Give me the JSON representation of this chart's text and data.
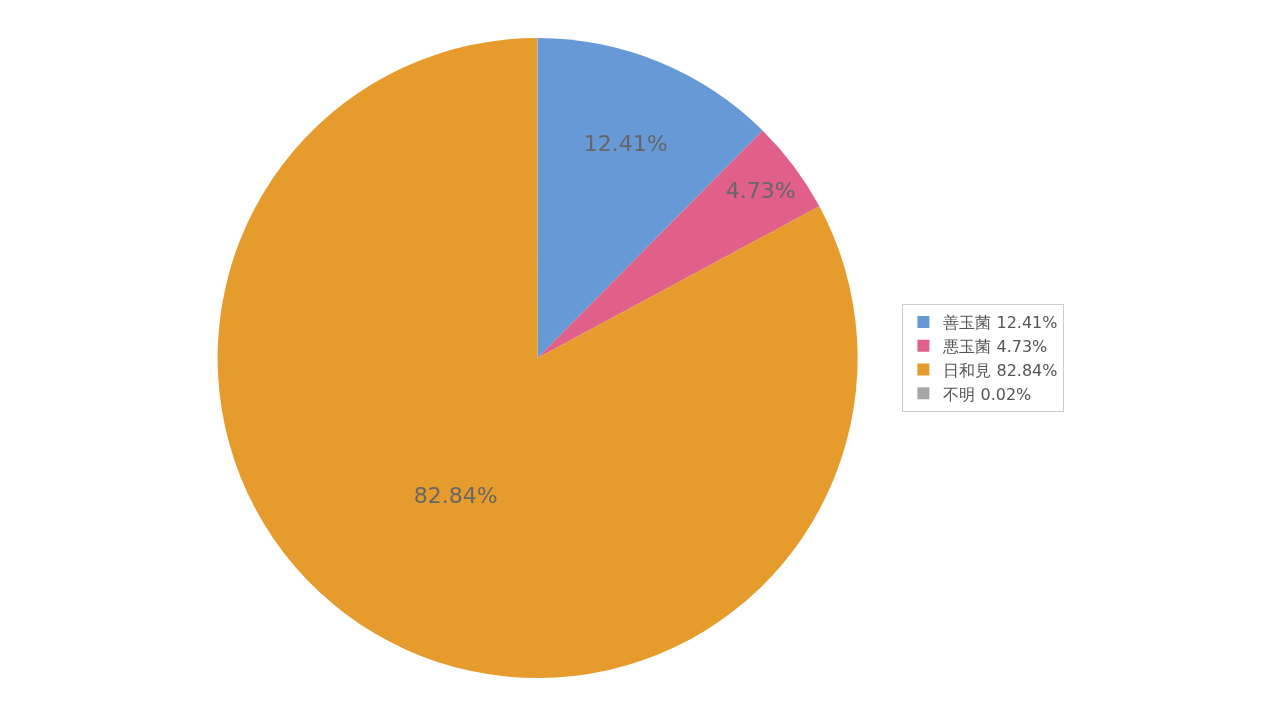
{
  "chart_data": {
    "type": "pie",
    "categories": [
      "善玉菌 12.41%",
      "悪玉菌 4.73%",
      "日和見 82.84%",
      "不明 0.02%"
    ],
    "values": [
      12.41,
      4.73,
      82.84,
      0.02
    ],
    "colors": [
      "#6699d5",
      "#e0608a",
      "#e69c2c",
      "#a6a6a6"
    ],
    "value_labels": [
      "12.41%",
      "4.73%",
      "82.84%",
      null
    ],
    "legend": "right"
  }
}
